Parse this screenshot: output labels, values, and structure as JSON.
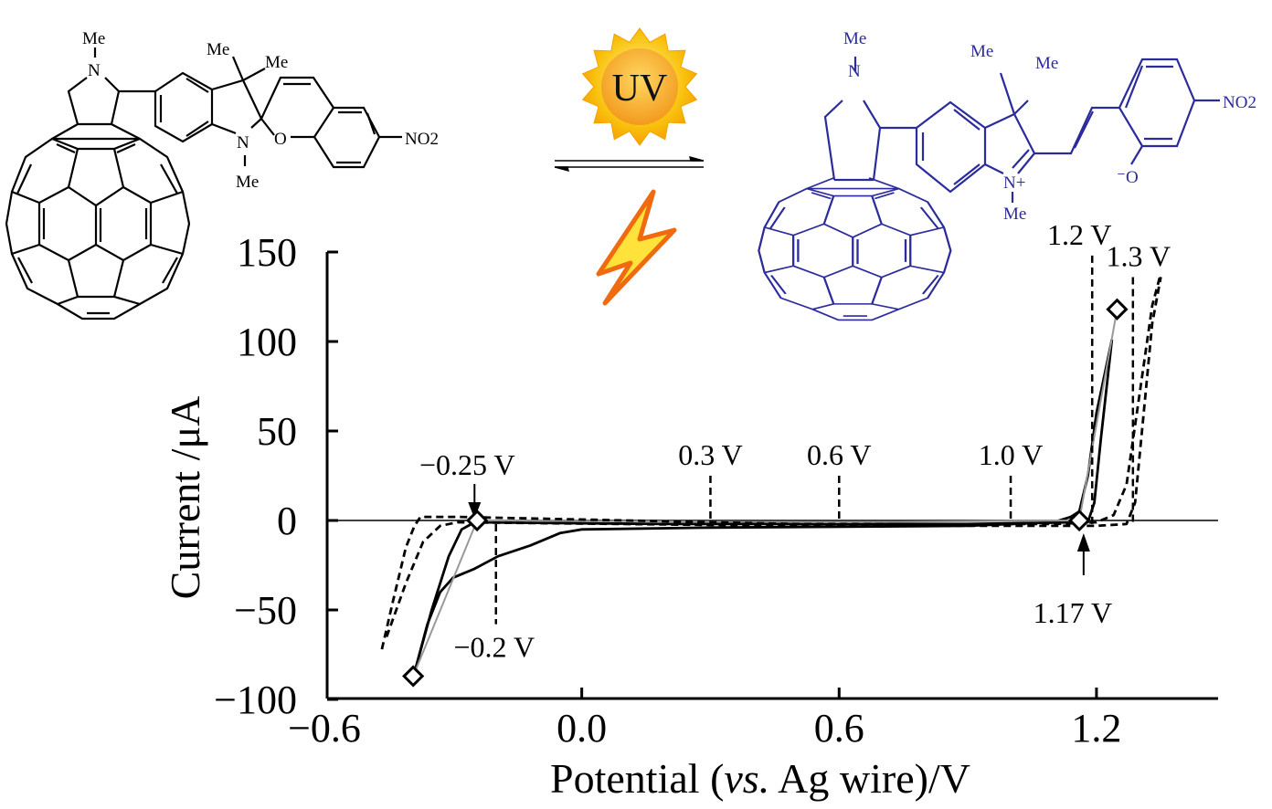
{
  "scheme": {
    "left_molecule": {
      "labels": [
        "Me",
        "N",
        "Me",
        "Me",
        "N",
        "Me",
        "O",
        "NO2"
      ],
      "color": "#000000"
    },
    "right_molecule": {
      "labels": [
        "Me",
        "N",
        "Me",
        "Me",
        "N+",
        "Me",
        "⁻O",
        "NO2"
      ],
      "color": "#2b2b9c"
    },
    "uv_label": "UV",
    "sun_colors": {
      "outer": "#f7b500",
      "inner": "#f59a1a"
    },
    "lightning_colors": {
      "fill": "#ffe23a",
      "edge": "#f06a10"
    }
  },
  "chart_data": {
    "type": "line",
    "title": "",
    "xlabel": {
      "pre": "Potential (",
      "italic": "vs.",
      "post": " Ag wire)/V"
    },
    "ylabel": "Current /μA",
    "xlim": [
      -0.6,
      1.48
    ],
    "ylim": [
      -100,
      150
    ],
    "xticks": [
      -0.6,
      0.0,
      0.6,
      1.2
    ],
    "xtick_labels": [
      "−0.6",
      "0.0",
      "0.6",
      "1.2"
    ],
    "yticks": [
      150,
      100,
      50,
      0,
      -50,
      -100
    ],
    "ytick_labels": [
      "150",
      "100",
      "50",
      "0",
      "−50",
      "−100"
    ],
    "grid": false,
    "series": [
      {
        "name": "solid-1",
        "style": "solid",
        "color": "#000000",
        "points": [
          [
            -0.39,
            -85
          ],
          [
            -0.36,
            -58
          ],
          [
            -0.33,
            -40
          ],
          [
            -0.3,
            -32
          ],
          [
            -0.25,
            -27
          ],
          [
            -0.195,
            -20
          ],
          [
            -0.12,
            -14
          ],
          [
            -0.05,
            -7
          ],
          [
            0.0,
            -5
          ],
          [
            0.3,
            -4
          ],
          [
            0.9,
            -3
          ],
          [
            1.1,
            -1
          ],
          [
            1.14,
            2
          ],
          [
            1.16,
            5
          ],
          [
            1.18,
            25
          ],
          [
            1.2,
            60
          ],
          [
            1.236,
            101
          ]
        ]
      },
      {
        "name": "solid-2",
        "style": "solid",
        "color": "#000000",
        "points": [
          [
            -0.39,
            -85
          ],
          [
            -0.35,
            -50
          ],
          [
            -0.31,
            -20
          ],
          [
            -0.28,
            -5
          ],
          [
            -0.25,
            -1
          ],
          [
            0.2,
            -2
          ],
          [
            0.9,
            -2
          ],
          [
            1.15,
            -1
          ],
          [
            1.18,
            -1
          ],
          [
            1.195,
            10
          ],
          [
            1.21,
            45
          ],
          [
            1.236,
            101
          ]
        ]
      },
      {
        "name": "gray-fit",
        "style": "solid",
        "color": "#999999",
        "points": [
          [
            -0.393,
            -87
          ],
          [
            -0.244,
            0
          ],
          [
            0.6,
            -1
          ],
          [
            1.16,
            0
          ],
          [
            1.248,
            118
          ]
        ]
      },
      {
        "name": "dashed-1",
        "style": "dashed",
        "color": "#000000",
        "points": [
          [
            -0.466,
            -72
          ],
          [
            -0.44,
            -45
          ],
          [
            -0.41,
            -15
          ],
          [
            -0.39,
            -3
          ],
          [
            -0.376,
            2
          ],
          [
            -0.29,
            2
          ],
          [
            0.5,
            -2
          ],
          [
            1.1,
            -2
          ],
          [
            1.2,
            -1
          ],
          [
            1.24,
            3
          ],
          [
            1.27,
            20
          ],
          [
            1.3,
            70
          ],
          [
            1.33,
            120
          ],
          [
            1.35,
            138
          ]
        ]
      },
      {
        "name": "dashed-2",
        "style": "dashed",
        "color": "#000000",
        "points": [
          [
            -0.455,
            -65
          ],
          [
            -0.41,
            -35
          ],
          [
            -0.37,
            -12
          ],
          [
            -0.33,
            -3
          ],
          [
            -0.29,
            -1
          ],
          [
            0.5,
            -3
          ],
          [
            1.1,
            -3
          ],
          [
            1.2,
            -3
          ],
          [
            1.27,
            -2
          ],
          [
            1.29,
            10
          ],
          [
            1.31,
            60
          ],
          [
            1.33,
            110
          ],
          [
            1.35,
            136
          ]
        ]
      }
    ],
    "markers": {
      "shape": "diamond",
      "points": [
        [
          -0.393,
          -87
        ],
        [
          -0.244,
          0
        ],
        [
          1.16,
          0
        ],
        [
          1.248,
          118
        ]
      ]
    },
    "annotations": [
      {
        "text": "−0.25 V",
        "x": -0.25,
        "kind": "arrow-down"
      },
      {
        "text": "−0.2 V",
        "x": -0.2,
        "kind": "dashed-below",
        "y_end": -58
      },
      {
        "text": "0.3 V",
        "x": 0.3,
        "kind": "dashed-above",
        "y_end": 25
      },
      {
        "text": "0.6 V",
        "x": 0.6,
        "kind": "dashed-above",
        "y_end": 25
      },
      {
        "text": "1.0 V",
        "x": 1.0,
        "kind": "dashed-above",
        "y_end": 25
      },
      {
        "text": "1.2 V",
        "x": 1.19,
        "kind": "dashed-above",
        "y_end": 148
      },
      {
        "text": "1.3 V",
        "x": 1.285,
        "kind": "dashed-above",
        "y_end": 136
      },
      {
        "text": "1.17 V",
        "x": 1.17,
        "kind": "arrow-up"
      }
    ]
  }
}
